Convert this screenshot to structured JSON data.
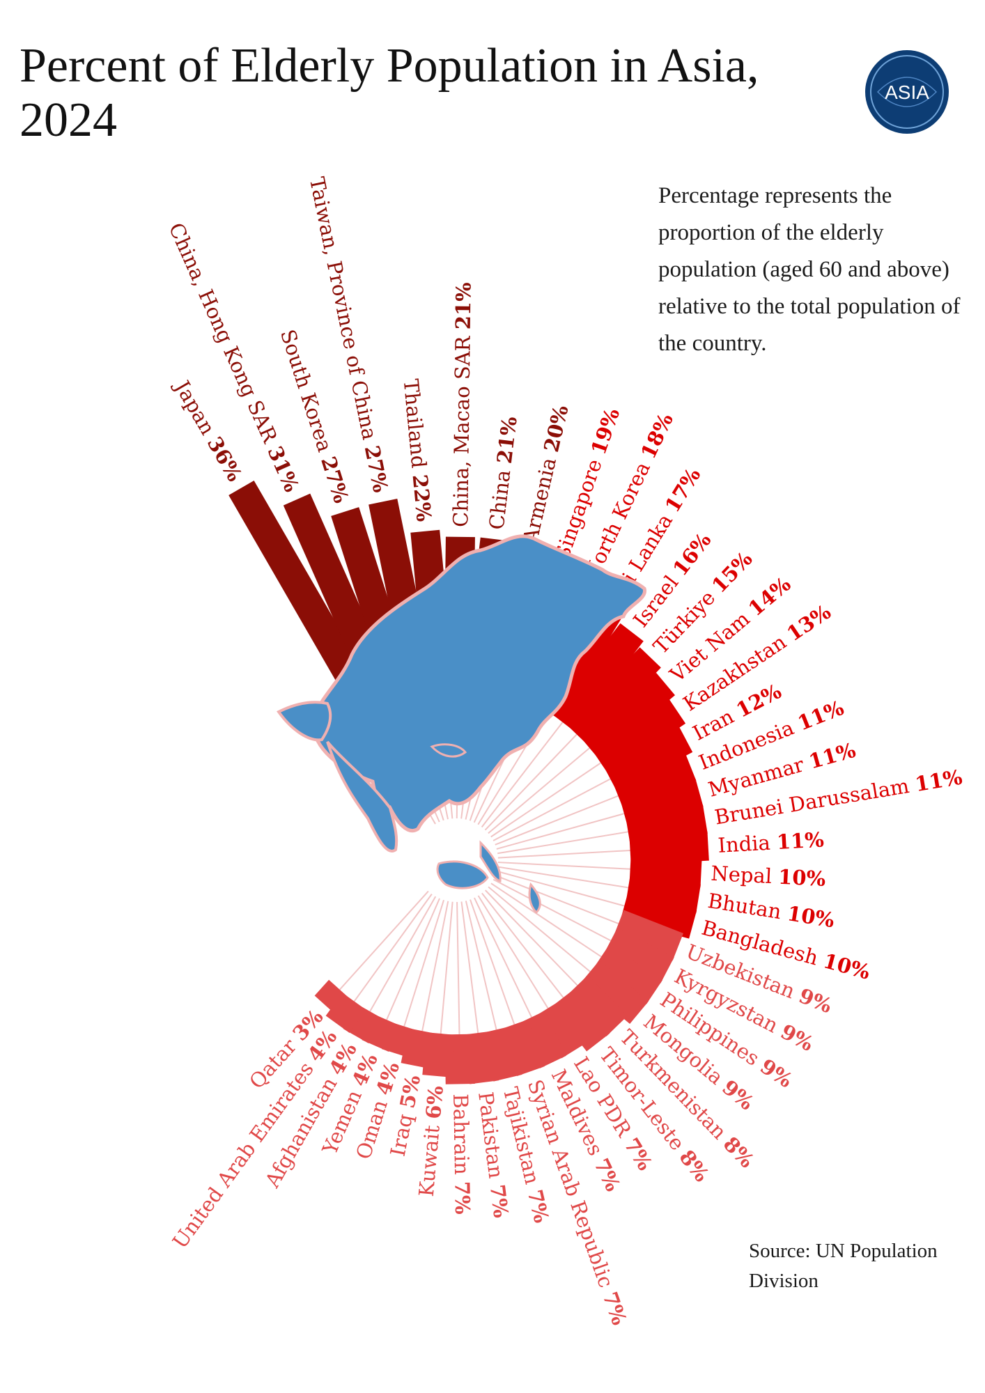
{
  "title": "Percent of Elderly Population in Asia, 2024",
  "note": "Percentage represents the proportion of the elderly population (aged 60 and above) relative to the total population of the country.",
  "source": "Source: UN Population Division",
  "logo": {
    "text": "ASIA",
    "icon": "asia-globe-logo"
  },
  "colors": {
    "high": "#8b0e06",
    "mid": "#dc0000",
    "low": "#e04848",
    "map": "#4a8fc7",
    "spoke": "#f1c4c4"
  },
  "chart_data": {
    "type": "bar",
    "layout": "radial",
    "title": "Percent of Elderly Population in Asia, 2024",
    "unit": "%",
    "categories": [
      "Japan",
      "China, Hong Kong SAR",
      "South Korea",
      "Taiwan, Province of China",
      "Thailand",
      "China, Macao SAR",
      "China",
      "Armenia",
      "Singapore",
      "North Korea",
      "Sri Lanka",
      "Israel",
      "Türkiye",
      "Viet Nam",
      "Kazakhstan",
      "Iran",
      "Indonesia",
      "Myanmar",
      "Brunei Darussalam",
      "India",
      "Nepal",
      "Bhutan",
      "Bangladesh",
      "Uzbekistan",
      "Kyrgyzstan",
      "Philippines",
      "Mongolia",
      "Turkmenistan",
      "Timor-Leste",
      "Lao PDR",
      "Maldives",
      "Syrian Arab Republic",
      "Tajikistan",
      "Pakistan",
      "Bahrain",
      "Kuwait",
      "Iraq",
      "Oman",
      "Yemen",
      "Afghanistan",
      "United Arab Emirates",
      "Qatar"
    ],
    "values": [
      36,
      31,
      27,
      27,
      22,
      21,
      21,
      20,
      19,
      18,
      17,
      16,
      15,
      14,
      13,
      12,
      11,
      11,
      11,
      11,
      10,
      10,
      10,
      9,
      9,
      9,
      9,
      8,
      8,
      7,
      7,
      7,
      7,
      7,
      7,
      6,
      5,
      4,
      4,
      4,
      4,
      3
    ],
    "labels": [
      "36%",
      "31%",
      "27%",
      "27%",
      "22%",
      "21%",
      "21%",
      "20%",
      "19%",
      "18%",
      "17%",
      "16%",
      "15%",
      "14%",
      "13%",
      "12%",
      "11%",
      "11%",
      "11%",
      "11%",
      "10%",
      "10%",
      "10%",
      "9%",
      "9%",
      "9%",
      "9%",
      "8%",
      "8%",
      "7%",
      "7%",
      "7%",
      "7%",
      "7%",
      "7%",
      "6%",
      "5%",
      "4%",
      "4%",
      "4%",
      "4%",
      "3%"
    ],
    "color_groups": [
      {
        "range": [
          20,
          36
        ],
        "color": "#8b0e06"
      },
      {
        "range": [
          10,
          19
        ],
        "color": "#dc0000"
      },
      {
        "range": [
          3,
          9
        ],
        "color": "#e04848"
      }
    ]
  }
}
